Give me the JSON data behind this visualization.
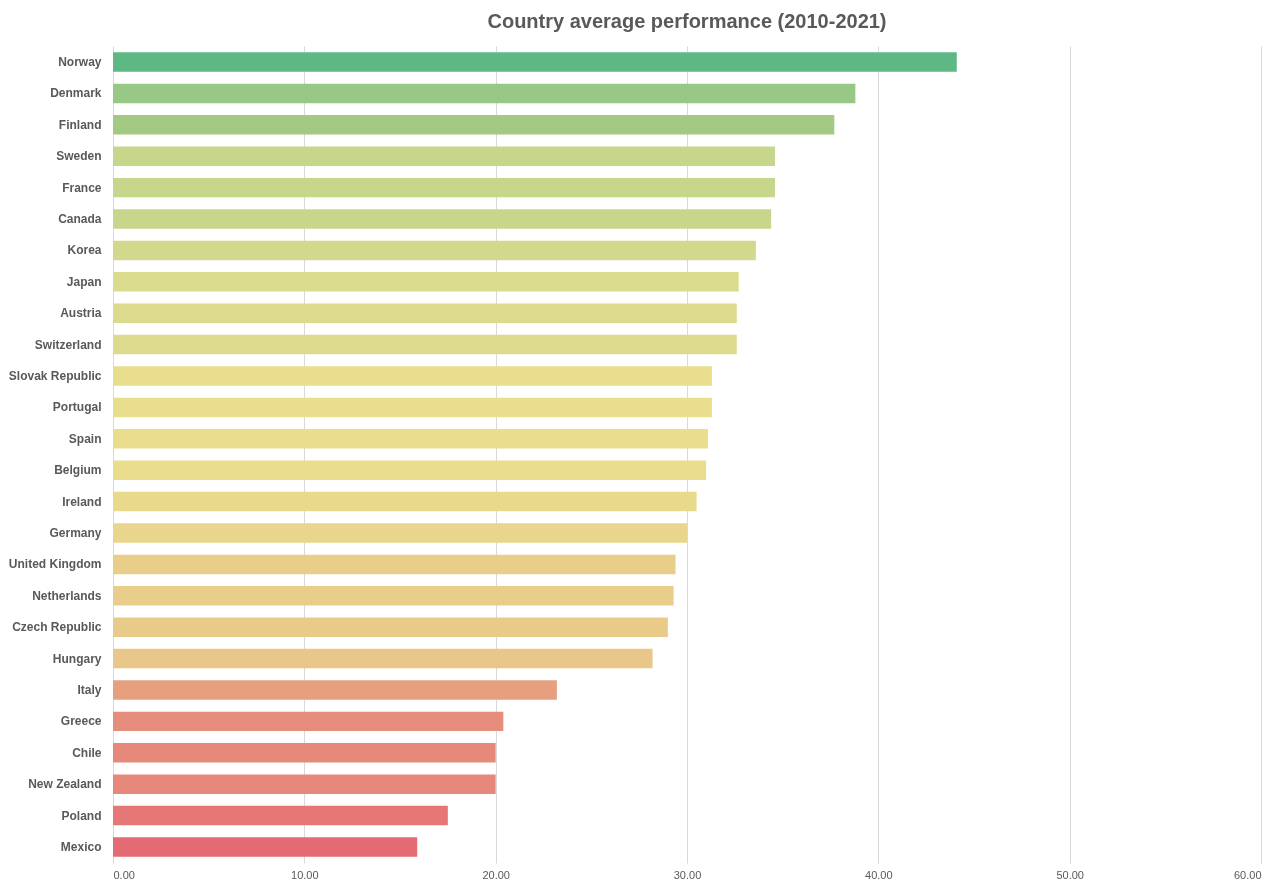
{
  "chart_data": {
    "type": "bar",
    "orientation": "horizontal",
    "title": "Country average performance (2010-2021)",
    "categories": [
      "Norway",
      "Denmark",
      "Finland",
      "Sweden",
      "France",
      "Canada",
      "Korea",
      "Japan",
      "Austria",
      "Switzerland",
      "Slovak Republic",
      "Portugal",
      "Spain",
      "Belgium",
      "Ireland",
      "Germany",
      "United Kingdom",
      "Netherlands",
      "Czech Republic",
      "Hungary",
      "Italy",
      "Greece",
      "Chile",
      "New Zealand",
      "Poland",
      "Mexico"
    ],
    "values": [
      44.1,
      38.8,
      37.7,
      34.6,
      34.6,
      34.4,
      33.6,
      32.7,
      32.6,
      32.6,
      31.3,
      31.3,
      31.1,
      31.0,
      30.5,
      30.0,
      29.4,
      29.3,
      29.0,
      28.2,
      23.2,
      20.4,
      20.0,
      20.0,
      17.5,
      15.9
    ],
    "colors": [
      "#5db884",
      "#98c885",
      "#a2ca85",
      "#c6d68b",
      "#c6d68b",
      "#c8d68b",
      "#d3d98c",
      "#dbdb8d",
      "#dcda8d",
      "#dcda8d",
      "#e9de8c",
      "#e9de8c",
      "#eade8c",
      "#eade8c",
      "#e9da8b",
      "#e9d58b",
      "#e9ce8a",
      "#e9cd8a",
      "#e9cb89",
      "#e9c689",
      "#e6a07f",
      "#e68c7c",
      "#e6897b",
      "#e6887b",
      "#e57776",
      "#e46a73"
    ],
    "xlim": [
      0,
      60
    ],
    "xticks": [
      {
        "value": 0,
        "label": "0.00"
      },
      {
        "value": 10,
        "label": "10.00"
      },
      {
        "value": 20,
        "label": "20.00"
      },
      {
        "value": 30,
        "label": "30.00"
      },
      {
        "value": 40,
        "label": "40.00"
      },
      {
        "value": 50,
        "label": "50.00"
      },
      {
        "value": 60,
        "label": "60.00"
      }
    ],
    "grid": "x"
  }
}
